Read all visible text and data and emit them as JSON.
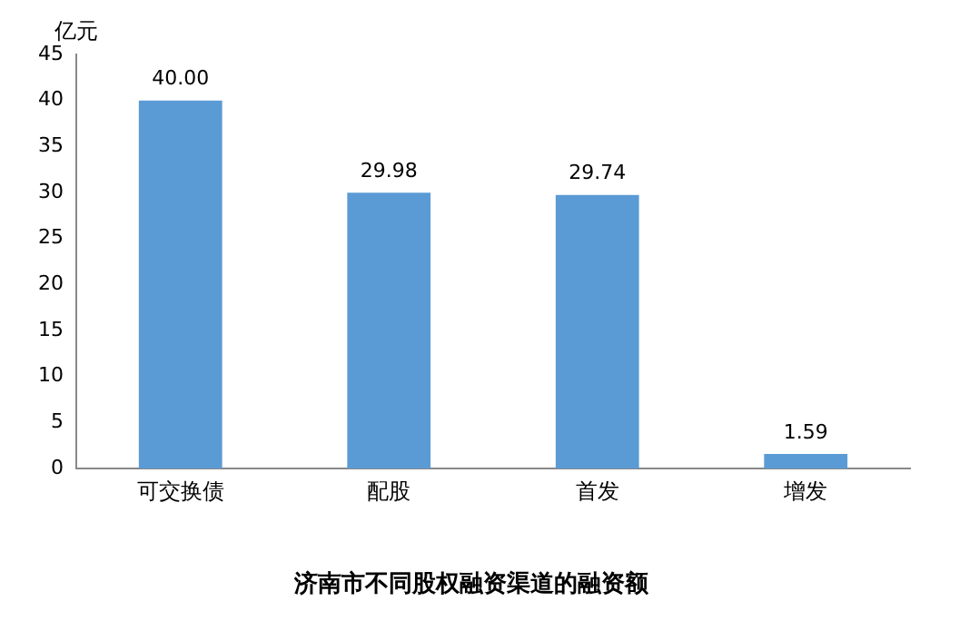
{
  "chart_data": {
    "type": "bar",
    "title": "济南市不同股权融资渠道的融资额",
    "ylabel": "亿元",
    "categories": [
      "可交换债",
      "配股",
      "首发",
      "增发"
    ],
    "values": [
      40.0,
      29.98,
      29.74,
      1.59
    ],
    "value_labels": [
      "40.00",
      "29.98",
      "29.74",
      "1.59"
    ],
    "color": "#5b9bd5",
    "ylim": [
      0,
      45
    ],
    "yticks": [
      0,
      5,
      10,
      15,
      20,
      25,
      30,
      35,
      40,
      45
    ],
    "grid": false,
    "legend": false
  }
}
